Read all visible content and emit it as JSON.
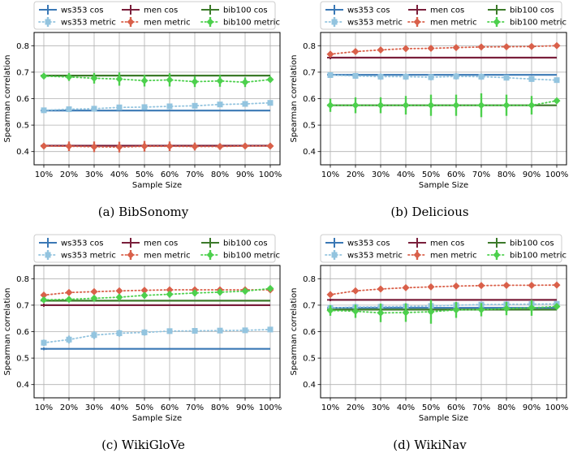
{
  "chart_data": [
    {
      "type": "line",
      "caption": "(a) BibSonomy",
      "xlabel": "Sample Size",
      "ylabel": "Spearman correlation",
      "categories": [
        "10%",
        "20%",
        "30%",
        "40%",
        "50%",
        "60%",
        "70%",
        "80%",
        "90%",
        "100%"
      ],
      "ylim": [
        0.35,
        0.85
      ],
      "yticks": [
        "0.4",
        "0.5",
        "0.6",
        "0.7",
        "0.8"
      ],
      "grid": true,
      "legend": "top-outside",
      "series": [
        {
          "name": "ws353 cos",
          "style": "cos",
          "color": "#3a78b5",
          "values": [
            0.555,
            0.555,
            0.555,
            0.555,
            0.555,
            0.555,
            0.555,
            0.555,
            0.555,
            0.555
          ],
          "err": [
            0.005,
            0,
            0,
            0,
            0,
            0,
            0,
            0,
            0,
            0
          ]
        },
        {
          "name": "ws353 metric",
          "style": "metric",
          "marker": "square",
          "color": "#93c4df",
          "values": [
            0.556,
            0.56,
            0.562,
            0.567,
            0.568,
            0.571,
            0.573,
            0.578,
            0.58,
            0.584
          ],
          "err": [
            0.008,
            0.01,
            0.01,
            0.01,
            0.01,
            0.01,
            0.01,
            0.01,
            0.01,
            0
          ]
        },
        {
          "name": "men cos",
          "style": "cos",
          "color": "#7a1f3b",
          "values": [
            0.422,
            0.422,
            0.422,
            0.422,
            0.422,
            0.422,
            0.422,
            0.422,
            0.422,
            0.422
          ],
          "err": [
            0.006,
            0,
            0,
            0,
            0,
            0,
            0,
            0,
            0,
            0
          ]
        },
        {
          "name": "men metric",
          "style": "metric",
          "marker": "diamond",
          "color": "#d9604a",
          "values": [
            0.421,
            0.42,
            0.418,
            0.417,
            0.42,
            0.42,
            0.419,
            0.419,
            0.421,
            0.421
          ],
          "err": [
            0.01,
            0.018,
            0.02,
            0.02,
            0.02,
            0.018,
            0.015,
            0.012,
            0.01,
            0
          ]
        },
        {
          "name": "bib100 cos",
          "style": "cos",
          "color": "#3c7a2a",
          "values": [
            0.687,
            0.687,
            0.687,
            0.687,
            0.687,
            0.687,
            0.687,
            0.687,
            0.687,
            0.687
          ],
          "err": [
            0.005,
            0,
            0,
            0,
            0,
            0,
            0,
            0,
            0,
            0
          ]
        },
        {
          "name": "bib100 metric",
          "style": "metric",
          "marker": "diamond",
          "color": "#4dd04d",
          "values": [
            0.685,
            0.682,
            0.677,
            0.674,
            0.668,
            0.671,
            0.664,
            0.667,
            0.662,
            0.672
          ],
          "err": [
            0.01,
            0.015,
            0.02,
            0.025,
            0.022,
            0.025,
            0.02,
            0.022,
            0.018,
            0
          ]
        }
      ]
    },
    {
      "type": "line",
      "caption": "(b) Delicious",
      "xlabel": "Sample Size",
      "ylabel": "Spearman correlation",
      "categories": [
        "10%",
        "20%",
        "30%",
        "40%",
        "50%",
        "60%",
        "70%",
        "80%",
        "90%",
        "100%"
      ],
      "ylim": [
        0.35,
        0.85
      ],
      "yticks": [
        "0.4",
        "0.5",
        "0.6",
        "0.7",
        "0.8"
      ],
      "grid": true,
      "legend": "top-outside",
      "series": [
        {
          "name": "ws353 cos",
          "style": "cos",
          "color": "#3a78b5",
          "values": [
            0.69,
            0.69,
            0.69,
            0.69,
            0.69,
            0.69,
            0.69,
            0.69,
            0.69,
            0.69
          ],
          "err": [
            0.006,
            0,
            0,
            0,
            0,
            0,
            0,
            0,
            0,
            0
          ]
        },
        {
          "name": "ws353 metric",
          "style": "metric",
          "marker": "square",
          "color": "#93c4df",
          "values": [
            0.689,
            0.686,
            0.683,
            0.683,
            0.681,
            0.684,
            0.683,
            0.679,
            0.674,
            0.67
          ],
          "err": [
            0.01,
            0.01,
            0.012,
            0.012,
            0.012,
            0.012,
            0.012,
            0.01,
            0.01,
            0
          ]
        },
        {
          "name": "men cos",
          "style": "cos",
          "color": "#7a1f3b",
          "values": [
            0.755,
            0.755,
            0.755,
            0.755,
            0.755,
            0.755,
            0.755,
            0.755,
            0.755,
            0.755
          ],
          "err": [
            0.006,
            0,
            0,
            0,
            0,
            0,
            0,
            0,
            0,
            0
          ]
        },
        {
          "name": "men metric",
          "style": "metric",
          "marker": "diamond",
          "color": "#d9604a",
          "values": [
            0.768,
            0.778,
            0.784,
            0.789,
            0.79,
            0.793,
            0.795,
            0.796,
            0.797,
            0.8
          ],
          "err": [
            0.006,
            0.006,
            0.006,
            0.006,
            0.006,
            0.006,
            0.006,
            0.006,
            0.006,
            0
          ]
        },
        {
          "name": "bib100 cos",
          "style": "cos",
          "color": "#3c7a2a",
          "values": [
            0.575,
            0.575,
            0.575,
            0.575,
            0.575,
            0.575,
            0.575,
            0.575,
            0.575,
            0.575
          ],
          "err": [
            0.008,
            0,
            0,
            0,
            0,
            0,
            0,
            0,
            0,
            0
          ]
        },
        {
          "name": "bib100 metric",
          "style": "metric",
          "marker": "diamond",
          "color": "#4dd04d",
          "values": [
            0.575,
            0.575,
            0.575,
            0.575,
            0.575,
            0.575,
            0.575,
            0.575,
            0.575,
            0.592
          ],
          "err": [
            0.025,
            0.03,
            0.03,
            0.035,
            0.04,
            0.04,
            0.045,
            0.04,
            0.035,
            0
          ]
        }
      ]
    },
    {
      "type": "line",
      "caption": "(c) WikiGloVe",
      "xlabel": "Sample Size",
      "ylabel": "Spearman correlation",
      "categories": [
        "10%",
        "20%",
        "30%",
        "40%",
        "50%",
        "60%",
        "70%",
        "80%",
        "90%",
        "100%"
      ],
      "ylim": [
        0.35,
        0.85
      ],
      "yticks": [
        "0.4",
        "0.5",
        "0.6",
        "0.7",
        "0.8"
      ],
      "grid": true,
      "legend": "top-outside",
      "series": [
        {
          "name": "ws353 cos",
          "style": "cos",
          "color": "#3a78b5",
          "values": [
            0.535,
            0.535,
            0.535,
            0.535,
            0.535,
            0.535,
            0.535,
            0.535,
            0.535,
            0.535
          ],
          "err": [
            0.005,
            0,
            0,
            0,
            0,
            0,
            0,
            0,
            0,
            0
          ]
        },
        {
          "name": "ws353 metric",
          "style": "metric",
          "marker": "square",
          "color": "#93c4df",
          "values": [
            0.558,
            0.57,
            0.587,
            0.594,
            0.597,
            0.602,
            0.603,
            0.604,
            0.605,
            0.608
          ],
          "err": [
            0.012,
            0.015,
            0.015,
            0.013,
            0.012,
            0.01,
            0.01,
            0.008,
            0.008,
            0
          ]
        },
        {
          "name": "men cos",
          "style": "cos",
          "color": "#7a1f3b",
          "values": [
            0.7,
            0.7,
            0.7,
            0.7,
            0.7,
            0.7,
            0.7,
            0.7,
            0.7,
            0.7
          ],
          "err": [
            0.006,
            0,
            0,
            0,
            0,
            0,
            0,
            0,
            0,
            0
          ]
        },
        {
          "name": "men metric",
          "style": "metric",
          "marker": "diamond",
          "color": "#d9604a",
          "values": [
            0.738,
            0.748,
            0.751,
            0.754,
            0.756,
            0.758,
            0.758,
            0.758,
            0.758,
            0.758
          ],
          "err": [
            0.006,
            0.008,
            0.008,
            0.008,
            0.008,
            0.008,
            0.008,
            0.008,
            0.008,
            0
          ]
        },
        {
          "name": "bib100 cos",
          "style": "cos",
          "color": "#3c7a2a",
          "values": [
            0.717,
            0.717,
            0.717,
            0.717,
            0.717,
            0.717,
            0.717,
            0.717,
            0.717,
            0.717
          ],
          "err": [
            0.005,
            0,
            0,
            0,
            0,
            0,
            0,
            0,
            0,
            0
          ]
        },
        {
          "name": "bib100 metric",
          "style": "metric",
          "marker": "diamond",
          "color": "#4dd04d",
          "values": [
            0.72,
            0.722,
            0.726,
            0.73,
            0.737,
            0.741,
            0.746,
            0.749,
            0.753,
            0.763
          ],
          "err": [
            0.008,
            0.01,
            0.012,
            0.012,
            0.012,
            0.012,
            0.012,
            0.012,
            0.012,
            0
          ]
        }
      ]
    },
    {
      "type": "line",
      "caption": "(d) WikiNav",
      "xlabel": "Sample Size",
      "ylabel": "Spearman correlation",
      "categories": [
        "10%",
        "20%",
        "30%",
        "40%",
        "50%",
        "60%",
        "70%",
        "80%",
        "90%",
        "100%"
      ],
      "ylim": [
        0.35,
        0.85
      ],
      "yticks": [
        "0.4",
        "0.5",
        "0.6",
        "0.7",
        "0.8"
      ],
      "grid": true,
      "legend": "top-outside",
      "series": [
        {
          "name": "ws353 cos",
          "style": "cos",
          "color": "#3a78b5",
          "values": [
            0.69,
            0.69,
            0.69,
            0.69,
            0.69,
            0.69,
            0.69,
            0.69,
            0.69,
            0.69
          ],
          "err": [
            0.006,
            0,
            0,
            0,
            0,
            0,
            0,
            0,
            0,
            0
          ]
        },
        {
          "name": "ws353 metric",
          "style": "metric",
          "marker": "square",
          "color": "#93c4df",
          "values": [
            0.69,
            0.693,
            0.694,
            0.695,
            0.697,
            0.7,
            0.702,
            0.703,
            0.704,
            0.705
          ],
          "err": [
            0.012,
            0.012,
            0.012,
            0.012,
            0.012,
            0.012,
            0.012,
            0.012,
            0.012,
            0
          ]
        },
        {
          "name": "men cos",
          "style": "cos",
          "color": "#7a1f3b",
          "values": [
            0.72,
            0.72,
            0.72,
            0.72,
            0.72,
            0.72,
            0.72,
            0.72,
            0.72,
            0.72
          ],
          "err": [
            0.005,
            0,
            0,
            0,
            0,
            0,
            0,
            0,
            0,
            0
          ]
        },
        {
          "name": "men metric",
          "style": "metric",
          "marker": "diamond",
          "color": "#d9604a",
          "values": [
            0.74,
            0.754,
            0.761,
            0.766,
            0.769,
            0.772,
            0.774,
            0.775,
            0.775,
            0.776
          ],
          "err": [
            0.006,
            0.006,
            0.006,
            0.006,
            0.006,
            0.006,
            0.006,
            0.006,
            0.006,
            0
          ]
        },
        {
          "name": "bib100 cos",
          "style": "cos",
          "color": "#3c7a2a",
          "values": [
            0.683,
            0.683,
            0.683,
            0.683,
            0.683,
            0.683,
            0.683,
            0.683,
            0.683,
            0.683
          ],
          "err": [
            0.005,
            0,
            0,
            0,
            0,
            0,
            0,
            0,
            0,
            0
          ]
        },
        {
          "name": "bib100 metric",
          "style": "metric",
          "marker": "diamond",
          "color": "#4dd04d",
          "values": [
            0.68,
            0.677,
            0.671,
            0.672,
            0.675,
            0.682,
            0.683,
            0.687,
            0.69,
            0.695
          ],
          "err": [
            0.02,
            0.025,
            0.035,
            0.035,
            0.045,
            0.03,
            0.025,
            0.025,
            0.03,
            0
          ]
        }
      ]
    }
  ]
}
